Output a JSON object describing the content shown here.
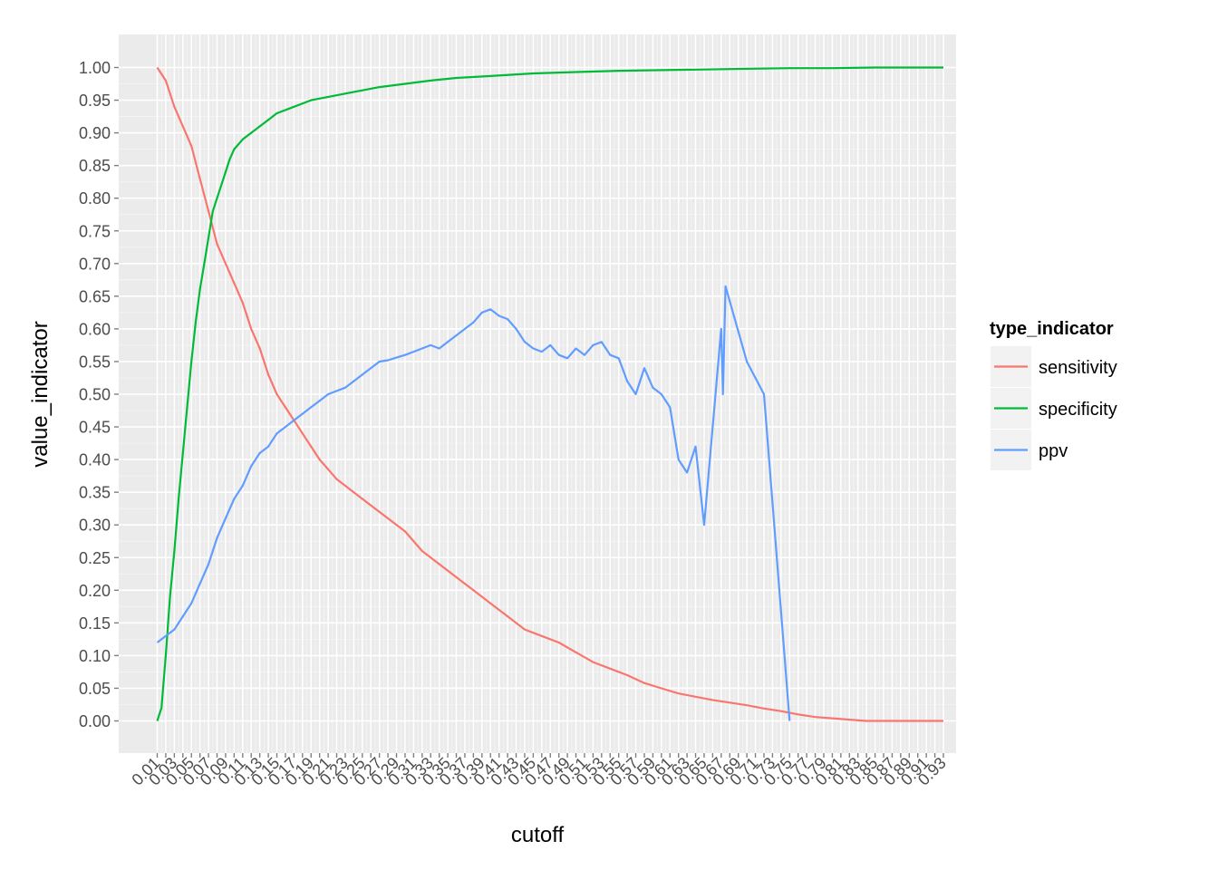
{
  "chart_data": {
    "type": "line",
    "xlabel": "cutoff",
    "ylabel": "value_indicator",
    "ylim": [
      -0.05,
      1.05
    ],
    "y_ticks": [
      "0.00",
      "0.05",
      "0.10",
      "0.15",
      "0.20",
      "0.25",
      "0.30",
      "0.35",
      "0.40",
      "0.45",
      "0.50",
      "0.55",
      "0.60",
      "0.65",
      "0.70",
      "0.75",
      "0.80",
      "0.85",
      "0.90",
      "0.95",
      "1.00"
    ],
    "x_categories_count": 93,
    "x_tick_labels": [
      "0.01",
      "0.03",
      "0.05",
      "0.07",
      "0.09",
      "0.11",
      "0.13",
      "0.15",
      "0.17",
      "0.19",
      "0.21",
      "0.23",
      "0.25",
      "0.27",
      "0.29",
      "0.31",
      "0.33",
      "0.35",
      "0.37",
      "0.39",
      "0.41",
      "0.43",
      "0.45",
      "0.47",
      "0.49",
      "0.51",
      "0.53",
      "0.55",
      "0.57",
      "0.59",
      "0.61",
      "0.63",
      "0.65",
      "0.67",
      "0.69",
      "0.71",
      "0.73",
      "0.75",
      "0.77",
      "0.79",
      "0.81",
      "0.83",
      "0.85",
      "0.87",
      "0.89",
      "0.91",
      "0.93"
    ],
    "grid": true,
    "legend": {
      "title": "type_indicator",
      "position": "right",
      "entries": [
        "sensitivity",
        "specificity",
        "ppv"
      ]
    },
    "series": [
      {
        "name": "sensitivity",
        "color": "#F8766D",
        "points": [
          [
            0.01,
            1.0
          ],
          [
            0.02,
            0.98
          ],
          [
            0.03,
            0.94
          ],
          [
            0.04,
            0.91
          ],
          [
            0.05,
            0.88
          ],
          [
            0.06,
            0.83
          ],
          [
            0.07,
            0.78
          ],
          [
            0.08,
            0.73
          ],
          [
            0.09,
            0.7
          ],
          [
            0.1,
            0.67
          ],
          [
            0.11,
            0.64
          ],
          [
            0.12,
            0.6
          ],
          [
            0.13,
            0.57
          ],
          [
            0.14,
            0.53
          ],
          [
            0.15,
            0.5
          ],
          [
            0.16,
            0.48
          ],
          [
            0.17,
            0.46
          ],
          [
            0.18,
            0.44
          ],
          [
            0.2,
            0.4
          ],
          [
            0.22,
            0.37
          ],
          [
            0.24,
            0.35
          ],
          [
            0.26,
            0.33
          ],
          [
            0.28,
            0.31
          ],
          [
            0.3,
            0.29
          ],
          [
            0.32,
            0.26
          ],
          [
            0.34,
            0.24
          ],
          [
            0.36,
            0.22
          ],
          [
            0.38,
            0.2
          ],
          [
            0.4,
            0.18
          ],
          [
            0.42,
            0.16
          ],
          [
            0.44,
            0.14
          ],
          [
            0.46,
            0.13
          ],
          [
            0.48,
            0.12
          ],
          [
            0.5,
            0.105
          ],
          [
            0.52,
            0.09
          ],
          [
            0.54,
            0.08
          ],
          [
            0.56,
            0.07
          ],
          [
            0.58,
            0.058
          ],
          [
            0.6,
            0.05
          ],
          [
            0.62,
            0.042
          ],
          [
            0.64,
            0.037
          ],
          [
            0.66,
            0.032
          ],
          [
            0.68,
            0.028
          ],
          [
            0.7,
            0.024
          ],
          [
            0.72,
            0.019
          ],
          [
            0.74,
            0.015
          ],
          [
            0.76,
            0.01
          ],
          [
            0.78,
            0.006
          ],
          [
            0.8,
            0.004
          ],
          [
            0.82,
            0.002
          ],
          [
            0.84,
            0.0
          ],
          [
            0.86,
            0.0
          ],
          [
            0.88,
            0.0
          ],
          [
            0.9,
            0.0
          ],
          [
            0.93,
            0.0
          ]
        ]
      },
      {
        "name": "specificity",
        "color": "#00BA38",
        "points": [
          [
            0.01,
            0.0
          ],
          [
            0.015,
            0.02
          ],
          [
            0.02,
            0.1
          ],
          [
            0.025,
            0.19
          ],
          [
            0.03,
            0.26
          ],
          [
            0.035,
            0.34
          ],
          [
            0.04,
            0.41
          ],
          [
            0.045,
            0.48
          ],
          [
            0.05,
            0.55
          ],
          [
            0.055,
            0.61
          ],
          [
            0.06,
            0.66
          ],
          [
            0.065,
            0.7
          ],
          [
            0.07,
            0.74
          ],
          [
            0.075,
            0.78
          ],
          [
            0.08,
            0.8
          ],
          [
            0.085,
            0.82
          ],
          [
            0.09,
            0.84
          ],
          [
            0.095,
            0.86
          ],
          [
            0.1,
            0.875
          ],
          [
            0.11,
            0.89
          ],
          [
            0.12,
            0.9
          ],
          [
            0.13,
            0.91
          ],
          [
            0.14,
            0.92
          ],
          [
            0.15,
            0.93
          ],
          [
            0.17,
            0.94
          ],
          [
            0.19,
            0.95
          ],
          [
            0.21,
            0.955
          ],
          [
            0.23,
            0.96
          ],
          [
            0.25,
            0.965
          ],
          [
            0.27,
            0.97
          ],
          [
            0.3,
            0.975
          ],
          [
            0.33,
            0.98
          ],
          [
            0.36,
            0.984
          ],
          [
            0.4,
            0.987
          ],
          [
            0.45,
            0.991
          ],
          [
            0.5,
            0.993
          ],
          [
            0.55,
            0.995
          ],
          [
            0.6,
            0.996
          ],
          [
            0.65,
            0.997
          ],
          [
            0.7,
            0.998
          ],
          [
            0.75,
            0.999
          ],
          [
            0.8,
            0.999
          ],
          [
            0.85,
            1.0
          ],
          [
            0.93,
            1.0
          ]
        ]
      },
      {
        "name": "ppv",
        "color": "#619CFF",
        "points": [
          [
            0.01,
            0.12
          ],
          [
            0.02,
            0.13
          ],
          [
            0.03,
            0.14
          ],
          [
            0.04,
            0.16
          ],
          [
            0.05,
            0.18
          ],
          [
            0.06,
            0.21
          ],
          [
            0.07,
            0.24
          ],
          [
            0.08,
            0.28
          ],
          [
            0.09,
            0.31
          ],
          [
            0.1,
            0.34
          ],
          [
            0.11,
            0.36
          ],
          [
            0.12,
            0.39
          ],
          [
            0.13,
            0.41
          ],
          [
            0.14,
            0.42
          ],
          [
            0.15,
            0.44
          ],
          [
            0.16,
            0.45
          ],
          [
            0.17,
            0.46
          ],
          [
            0.18,
            0.47
          ],
          [
            0.19,
            0.48
          ],
          [
            0.2,
            0.49
          ],
          [
            0.21,
            0.5
          ],
          [
            0.22,
            0.505
          ],
          [
            0.23,
            0.51
          ],
          [
            0.24,
            0.52
          ],
          [
            0.25,
            0.53
          ],
          [
            0.26,
            0.54
          ],
          [
            0.27,
            0.55
          ],
          [
            0.28,
            0.552
          ],
          [
            0.29,
            0.556
          ],
          [
            0.3,
            0.56
          ],
          [
            0.31,
            0.565
          ],
          [
            0.32,
            0.57
          ],
          [
            0.33,
            0.575
          ],
          [
            0.34,
            0.57
          ],
          [
            0.35,
            0.58
          ],
          [
            0.36,
            0.59
          ],
          [
            0.37,
            0.6
          ],
          [
            0.38,
            0.61
          ],
          [
            0.39,
            0.625
          ],
          [
            0.4,
            0.63
          ],
          [
            0.41,
            0.62
          ],
          [
            0.42,
            0.615
          ],
          [
            0.43,
            0.6
          ],
          [
            0.44,
            0.58
          ],
          [
            0.45,
            0.57
          ],
          [
            0.46,
            0.565
          ],
          [
            0.47,
            0.575
          ],
          [
            0.48,
            0.56
          ],
          [
            0.49,
            0.555
          ],
          [
            0.5,
            0.57
          ],
          [
            0.51,
            0.56
          ],
          [
            0.52,
            0.575
          ],
          [
            0.53,
            0.58
          ],
          [
            0.54,
            0.56
          ],
          [
            0.55,
            0.555
          ],
          [
            0.56,
            0.52
          ],
          [
            0.57,
            0.5
          ],
          [
            0.58,
            0.54
          ],
          [
            0.59,
            0.51
          ],
          [
            0.6,
            0.5
          ],
          [
            0.61,
            0.48
          ],
          [
            0.62,
            0.4
          ],
          [
            0.63,
            0.38
          ],
          [
            0.64,
            0.42
          ],
          [
            0.65,
            0.3
          ],
          [
            0.66,
            0.45
          ],
          [
            0.67,
            0.6
          ],
          [
            0.672,
            0.5
          ],
          [
            0.675,
            0.665
          ],
          [
            0.7,
            0.55
          ],
          [
            0.72,
            0.5
          ],
          [
            0.75,
            0.0
          ]
        ]
      }
    ]
  }
}
